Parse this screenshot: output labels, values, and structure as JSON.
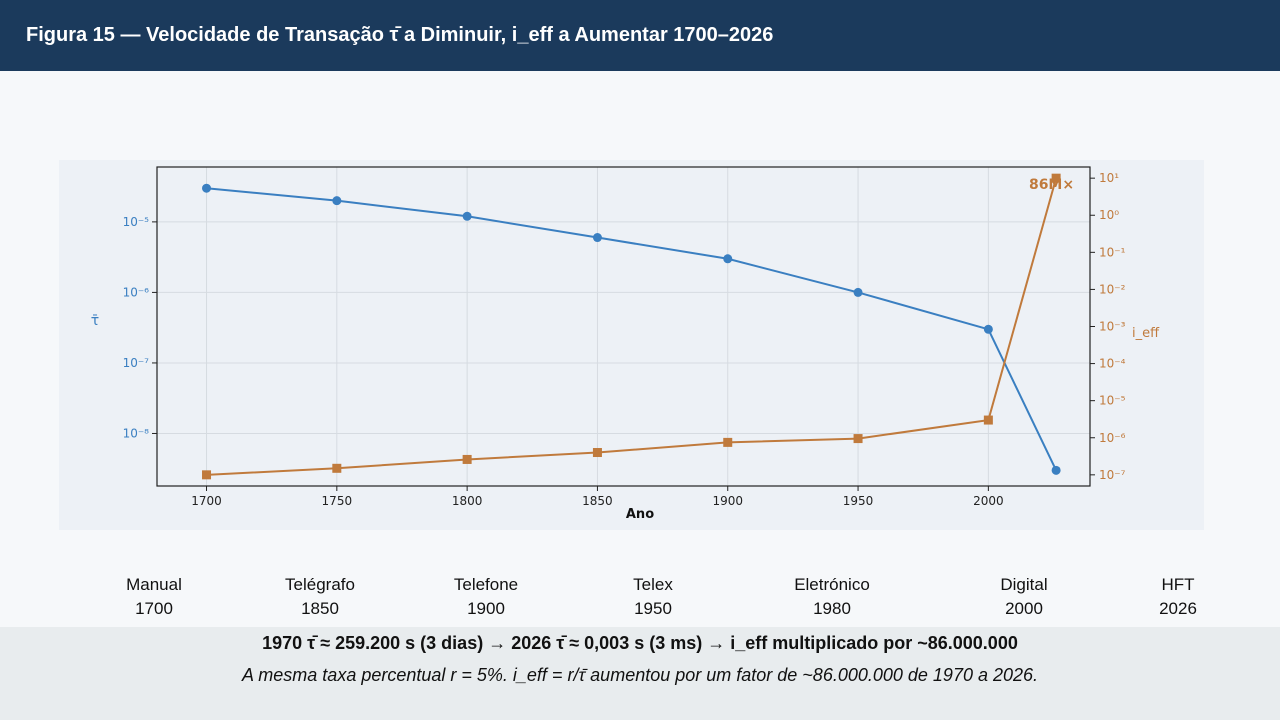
{
  "header": {
    "title": "Figura 15 — Velocidade de Transação τ̄ a Diminuir, i_eff a Aumentar 1700–2026"
  },
  "colors": {
    "header_bg": "#1b3a5c",
    "tau_series": "#3a7fc1",
    "ieff_series": "#c07a3c"
  },
  "chart_data": {
    "type": "line",
    "xlabel": "Ano",
    "x_ticks": [
      "1700",
      "1750",
      "1800",
      "1850",
      "1900",
      "1950",
      "2000"
    ],
    "x": [
      1700,
      1750,
      1800,
      1850,
      1900,
      1950,
      2000,
      2026
    ],
    "xlim": [
      1681,
      2039
    ],
    "grid": true,
    "series": [
      {
        "axis": "left",
        "marker": "circle",
        "values": [
          3e-05,
          2e-05,
          1.2e-05,
          6e-06,
          3e-06,
          1e-06,
          3e-07,
          3e-09
        ]
      },
      {
        "axis": "right",
        "marker": "square",
        "values": [
          1e-07,
          1.5e-07,
          2.6e-07,
          4e-07,
          7.5e-07,
          9.5e-07,
          3e-06,
          10
        ]
      }
    ],
    "left_axis": {
      "label": "τ̄",
      "scale": "log",
      "ylim": [
        1.8e-09,
        6e-05
      ],
      "ticks": [
        {
          "value": 1e-05,
          "label": "10⁻⁵"
        },
        {
          "value": 1e-06,
          "label": "10⁻⁶"
        },
        {
          "value": 1e-07,
          "label": "10⁻⁷"
        },
        {
          "value": 1e-08,
          "label": "10⁻⁸"
        }
      ]
    },
    "right_axis": {
      "label": "i_eff",
      "scale": "log",
      "ylim": [
        5e-08,
        20
      ],
      "ticks": [
        {
          "value": 10,
          "label": "10¹"
        },
        {
          "value": 1,
          "label": "10⁰"
        },
        {
          "value": 0.1,
          "label": "10⁻¹"
        },
        {
          "value": 0.01,
          "label": "10⁻²"
        },
        {
          "value": 0.001,
          "label": "10⁻³"
        },
        {
          "value": 0.0001,
          "label": "10⁻⁴"
        },
        {
          "value": 1e-05,
          "label": "10⁻⁵"
        },
        {
          "value": 1e-06,
          "label": "10⁻⁶"
        },
        {
          "value": 1e-07,
          "label": "10⁻⁷"
        }
      ]
    },
    "annotation": "86M×"
  },
  "stages": [
    {
      "name": "Manual",
      "year": "1700"
    },
    {
      "name": "Telégrafo",
      "year": "1850"
    },
    {
      "name": "Telefone",
      "year": "1900"
    },
    {
      "name": "Telex",
      "year": "1950"
    },
    {
      "name": "Eletrónico",
      "year": "1980"
    },
    {
      "name": "Digital",
      "year": "2000"
    },
    {
      "name": "HFT",
      "year": "2026"
    }
  ],
  "footer": {
    "summary": "1970 τ̄ ≈ 259.200 s (3 dias) → 2026 τ̄ ≈ 0,003 s (3 ms) → i_eff multiplicado por ~86.000.000",
    "note": "A mesma taxa percentual r = 5%. i_eff = r/τ̄ aumentou por um fator de ~86.000.000 de 1970 a 2026."
  }
}
